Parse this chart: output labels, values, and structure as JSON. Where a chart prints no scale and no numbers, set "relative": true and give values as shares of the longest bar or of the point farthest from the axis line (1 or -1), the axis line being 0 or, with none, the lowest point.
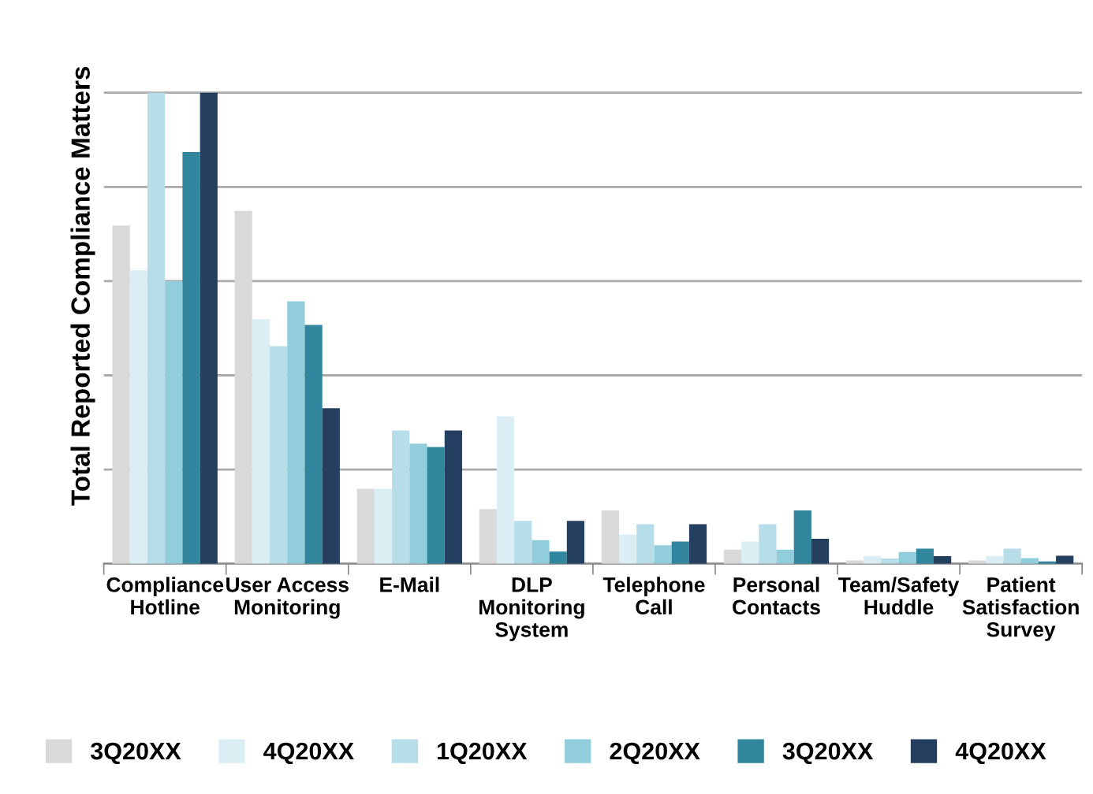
{
  "chart_data": {
    "type": "bar",
    "relative": true,
    "ylabel": "Total Reported Compliance Matters",
    "grid": "y",
    "legend": "bottom",
    "categories": [
      "Compliance\nHotline",
      "User Access\nMonitoring",
      "E-Mail",
      "DLP\nMonitoring\nSystem",
      "Telephone\nCall",
      "Personal\nContacts",
      "Team/Safety\nHuddle",
      "Patient\nSatisfaction\nSurvey"
    ],
    "series": [
      {
        "name": "3Q20XX",
        "color": "#d9d9d9",
        "values": [
          0.718,
          0.749,
          0.159,
          0.116,
          0.113,
          0.03,
          0.007,
          0.007
        ]
      },
      {
        "name": "4Q20XX",
        "color": "#dbeef4",
        "values": [
          0.623,
          0.519,
          0.159,
          0.313,
          0.062,
          0.047,
          0.016,
          0.016
        ]
      },
      {
        "name": "1Q20XX",
        "color": "#b7dde8",
        "values": [
          1,
          0.462,
          0.283,
          0.091,
          0.084,
          0.084,
          0.011,
          0.032
        ]
      },
      {
        "name": "2Q20XX",
        "color": "#92cddc",
        "values": [
          0.6,
          0.557,
          0.255,
          0.05,
          0.039,
          0.03,
          0.025,
          0.012
        ]
      },
      {
        "name": "3Q20XX",
        "color": "#31859c",
        "values": [
          0.874,
          0.507,
          0.248,
          0.026,
          0.047,
          0.113,
          0.032,
          0.005
        ]
      },
      {
        "name": "4Q20XX",
        "color": "#243f60",
        "values": [
          1,
          0.33,
          0.283,
          0.091,
          0.084,
          0.053,
          0.016,
          0.017
        ]
      }
    ]
  }
}
